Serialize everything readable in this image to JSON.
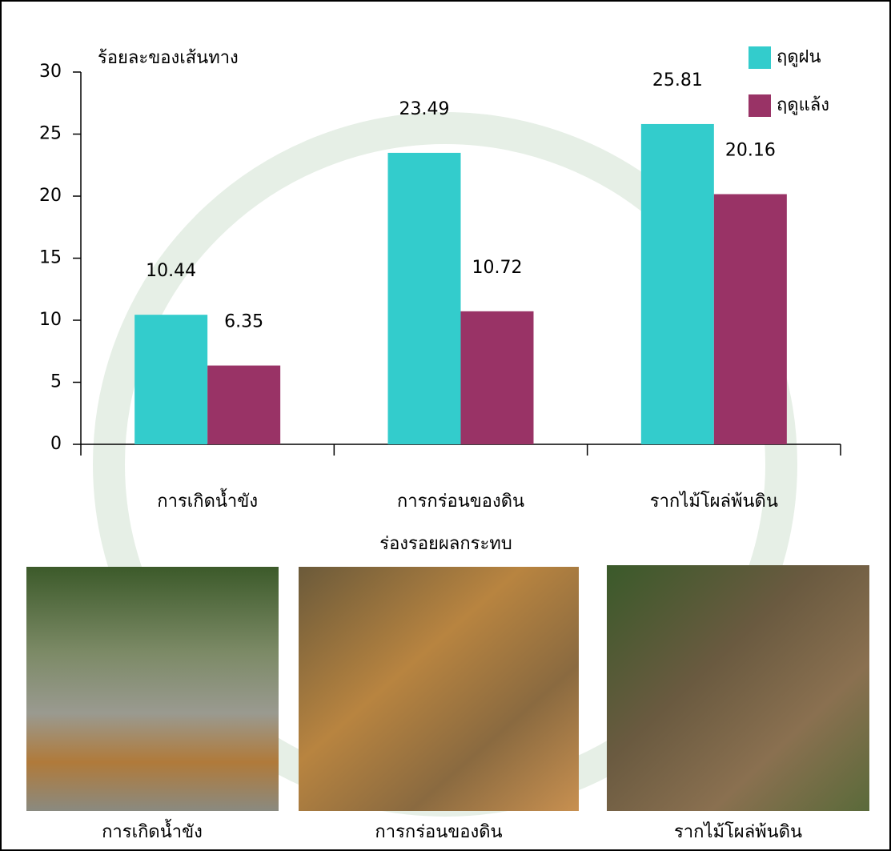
{
  "chart_data": {
    "type": "bar",
    "y_label": "ร้อยละของเส้นทาง",
    "x_label": "ร่องรอยผลกระทบ",
    "categories": [
      "การเกิดน้ำขัง",
      "การกร่อนของดิน",
      "รากไม้โผล่พ้นดิน"
    ],
    "series": [
      {
        "name": "ฤดูฝน",
        "color": "#33cccc",
        "values": [
          10.44,
          23.49,
          25.81
        ]
      },
      {
        "name": "ฤดูแล้ง",
        "color": "#993366",
        "values": [
          6.35,
          10.72,
          20.16
        ]
      }
    ],
    "ylim": [
      0,
      30
    ],
    "yticks": [
      0,
      5,
      10,
      15,
      20,
      25,
      30
    ],
    "legend": "top-right"
  },
  "photos": [
    {
      "caption": "การเกิดน้ำขัง"
    },
    {
      "caption": "การกร่อนของดิน"
    },
    {
      "caption": "รากไม้โผล่พ้นดิน"
    }
  ]
}
